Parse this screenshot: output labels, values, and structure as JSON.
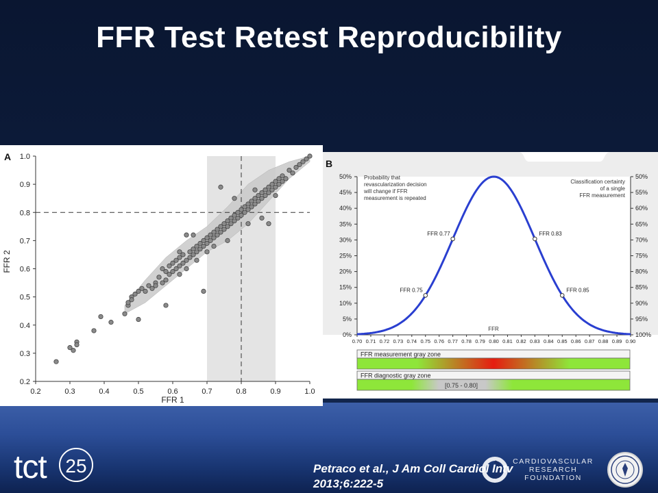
{
  "slide": {
    "title": "FFR Test Retest Reproducibility",
    "citation_line1": "Petraco et al., J Am Coll Cardiol Intv",
    "citation_line2": "2013;6:222-5",
    "logo_tct": "tct",
    "logo_tct_number": "25",
    "logo_crf": "CARDIOVASCULAR RESEARCH FOUNDATION"
  },
  "chart_data": [
    {
      "type": "scatter",
      "panel_label": "A",
      "xlabel": "FFR 1",
      "ylabel": "FFR 2",
      "xlim": [
        0.2,
        1.0
      ],
      "ylim": [
        0.2,
        1.0
      ],
      "xticks": [
        "0.2",
        "0.3",
        "0.4",
        "0.5",
        "0.6",
        "0.7",
        "0.8",
        "0.9",
        "1.0"
      ],
      "yticks": [
        "0.2",
        "0.3",
        "0.4",
        "0.5",
        "0.6",
        "0.7",
        "0.8",
        "0.9",
        "1.0"
      ],
      "reference_lines": {
        "x": 0.8,
        "y": 0.8
      },
      "shaded_x_band": [
        0.7,
        0.9
      ],
      "points": [
        [
          0.26,
          0.27
        ],
        [
          0.3,
          0.32
        ],
        [
          0.31,
          0.31
        ],
        [
          0.32,
          0.34
        ],
        [
          0.32,
          0.33
        ],
        [
          0.37,
          0.38
        ],
        [
          0.39,
          0.43
        ],
        [
          0.42,
          0.41
        ],
        [
          0.46,
          0.44
        ],
        [
          0.47,
          0.47
        ],
        [
          0.47,
          0.48
        ],
        [
          0.48,
          0.5
        ],
        [
          0.48,
          0.49
        ],
        [
          0.49,
          0.51
        ],
        [
          0.5,
          0.52
        ],
        [
          0.5,
          0.42
        ],
        [
          0.51,
          0.53
        ],
        [
          0.52,
          0.52
        ],
        [
          0.53,
          0.54
        ],
        [
          0.54,
          0.53
        ],
        [
          0.55,
          0.55
        ],
        [
          0.55,
          0.54
        ],
        [
          0.56,
          0.57
        ],
        [
          0.57,
          0.55
        ],
        [
          0.57,
          0.6
        ],
        [
          0.58,
          0.59
        ],
        [
          0.58,
          0.56
        ],
        [
          0.59,
          0.58
        ],
        [
          0.59,
          0.61
        ],
        [
          0.6,
          0.62
        ],
        [
          0.6,
          0.59
        ],
        [
          0.61,
          0.6
        ],
        [
          0.61,
          0.63
        ],
        [
          0.62,
          0.61
        ],
        [
          0.62,
          0.64
        ],
        [
          0.62,
          0.58
        ],
        [
          0.63,
          0.62
        ],
        [
          0.63,
          0.65
        ],
        [
          0.64,
          0.63
        ],
        [
          0.64,
          0.6
        ],
        [
          0.65,
          0.64
        ],
        [
          0.65,
          0.66
        ],
        [
          0.66,
          0.65
        ],
        [
          0.66,
          0.67
        ],
        [
          0.67,
          0.68
        ],
        [
          0.67,
          0.66
        ],
        [
          0.68,
          0.69
        ],
        [
          0.68,
          0.67
        ],
        [
          0.69,
          0.7
        ],
        [
          0.69,
          0.68
        ],
        [
          0.7,
          0.71
        ],
        [
          0.7,
          0.69
        ],
        [
          0.71,
          0.7
        ],
        [
          0.71,
          0.72
        ],
        [
          0.72,
          0.71
        ],
        [
          0.72,
          0.73
        ],
        [
          0.73,
          0.72
        ],
        [
          0.73,
          0.74
        ],
        [
          0.74,
          0.73
        ],
        [
          0.74,
          0.75
        ],
        [
          0.75,
          0.74
        ],
        [
          0.75,
          0.76
        ],
        [
          0.76,
          0.75
        ],
        [
          0.76,
          0.77
        ],
        [
          0.77,
          0.76
        ],
        [
          0.77,
          0.78
        ],
        [
          0.78,
          0.77
        ],
        [
          0.78,
          0.79
        ],
        [
          0.79,
          0.78
        ],
        [
          0.79,
          0.8
        ],
        [
          0.8,
          0.79
        ],
        [
          0.8,
          0.81
        ],
        [
          0.81,
          0.8
        ],
        [
          0.81,
          0.82
        ],
        [
          0.82,
          0.81
        ],
        [
          0.82,
          0.83
        ],
        [
          0.83,
          0.82
        ],
        [
          0.83,
          0.84
        ],
        [
          0.84,
          0.83
        ],
        [
          0.84,
          0.85
        ],
        [
          0.85,
          0.84
        ],
        [
          0.85,
          0.86
        ],
        [
          0.86,
          0.85
        ],
        [
          0.86,
          0.87
        ],
        [
          0.87,
          0.86
        ],
        [
          0.87,
          0.88
        ],
        [
          0.88,
          0.87
        ],
        [
          0.88,
          0.89
        ],
        [
          0.89,
          0.88
        ],
        [
          0.89,
          0.9
        ],
        [
          0.9,
          0.89
        ],
        [
          0.9,
          0.91
        ],
        [
          0.91,
          0.9
        ],
        [
          0.91,
          0.92
        ],
        [
          0.92,
          0.91
        ],
        [
          0.92,
          0.93
        ],
        [
          0.93,
          0.92
        ],
        [
          0.94,
          0.95
        ],
        [
          0.95,
          0.94
        ],
        [
          0.96,
          0.96
        ],
        [
          0.97,
          0.97
        ],
        [
          0.98,
          0.98
        ],
        [
          0.99,
          0.99
        ],
        [
          1.0,
          1.0
        ],
        [
          0.74,
          0.89
        ],
        [
          0.69,
          0.52
        ],
        [
          0.58,
          0.47
        ],
        [
          0.64,
          0.72
        ],
        [
          0.66,
          0.72
        ],
        [
          0.86,
          0.78
        ],
        [
          0.88,
          0.76
        ],
        [
          0.9,
          0.86
        ],
        [
          0.78,
          0.85
        ],
        [
          0.76,
          0.7
        ],
        [
          0.84,
          0.88
        ],
        [
          0.82,
          0.76
        ],
        [
          0.7,
          0.66
        ],
        [
          0.72,
          0.68
        ],
        [
          0.67,
          0.63
        ],
        [
          0.62,
          0.66
        ]
      ]
    },
    {
      "type": "line",
      "panel_label": "B",
      "xlabel": "FFR",
      "xlim": [
        0.7,
        0.9
      ],
      "ylim": [
        0,
        50
      ],
      "xticks": [
        "0.70",
        "0.71",
        "0.72",
        "0.73",
        "0.74",
        "0.75",
        "0.76",
        "0.77",
        "0.78",
        "0.79",
        "0.80",
        "0.81",
        "0.82",
        "0.83",
        "0.84",
        "0.85",
        "0.86",
        "0.87",
        "0.88",
        "0.89",
        "0.90"
      ],
      "yticks_left": [
        "0%",
        "5%",
        "10%",
        "15%",
        "20%",
        "25%",
        "30%",
        "35%",
        "40%",
        "45%",
        "50%"
      ],
      "yticks_right": [
        "100%",
        "95%",
        "90%",
        "85%",
        "80%",
        "75%",
        "70%",
        "65%",
        "60%",
        "55%",
        "50%"
      ],
      "curve_peak": {
        "x": 0.8,
        "y": 50,
        "sd": 0.03
      },
      "annotation_left": [
        "Probability that",
        "revascularization decision",
        "will change if FFR",
        "measurement is repeated"
      ],
      "annotation_right": [
        "Classification certainty",
        "of a single",
        "FFR measurement"
      ],
      "marked_points": [
        {
          "label": "FFR 0.75",
          "x": 0.75
        },
        {
          "label": "FFR 0.77",
          "x": 0.77
        },
        {
          "label": "FFR 0.83",
          "x": 0.83
        },
        {
          "label": "FFR 0.85",
          "x": 0.85
        }
      ],
      "zones": [
        {
          "label": "FFR measurement gray zone"
        },
        {
          "label": "FFR diagnostic gray zone",
          "range_label": "[0.75 - 0.80]"
        }
      ],
      "colors": {
        "curve": "#2a3fd0",
        "zone_green": "#8ee63a",
        "zone_red": "#e61c10",
        "zone_gray": "#c8c8c8"
      }
    }
  ]
}
